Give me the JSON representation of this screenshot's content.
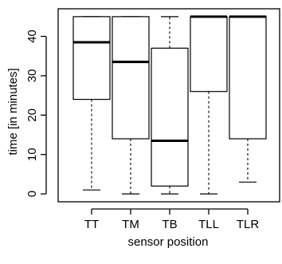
{
  "chart_data": {
    "type": "boxplot",
    "xlabel": "sensor position",
    "ylabel": "time [in minutes]",
    "ylim": [
      -2,
      47
    ],
    "yticks": [
      0,
      10,
      20,
      30,
      40
    ],
    "categories": [
      "TT",
      "TM",
      "TB",
      "TLL",
      "TLR"
    ],
    "boxes": [
      {
        "label": "TT",
        "whisker_low": 1,
        "q1": 24,
        "median": 38.5,
        "q3": 45,
        "whisker_high": 45
      },
      {
        "label": "TM",
        "whisker_low": 0,
        "q1": 14,
        "median": 33.5,
        "q3": 45,
        "whisker_high": 45
      },
      {
        "label": "TB",
        "whisker_low": 0,
        "q1": 2,
        "median": 13.5,
        "q3": 37,
        "whisker_high": 45
      },
      {
        "label": "TLL",
        "whisker_low": 0,
        "q1": 26,
        "median": 45,
        "q3": 45,
        "whisker_high": 45
      },
      {
        "label": "TLR",
        "whisker_low": 3,
        "q1": 14,
        "median": 45,
        "q3": 45,
        "whisker_high": 45
      }
    ],
    "grid": false,
    "box_fill": "#ffffff",
    "stroke_color": "#000000"
  }
}
